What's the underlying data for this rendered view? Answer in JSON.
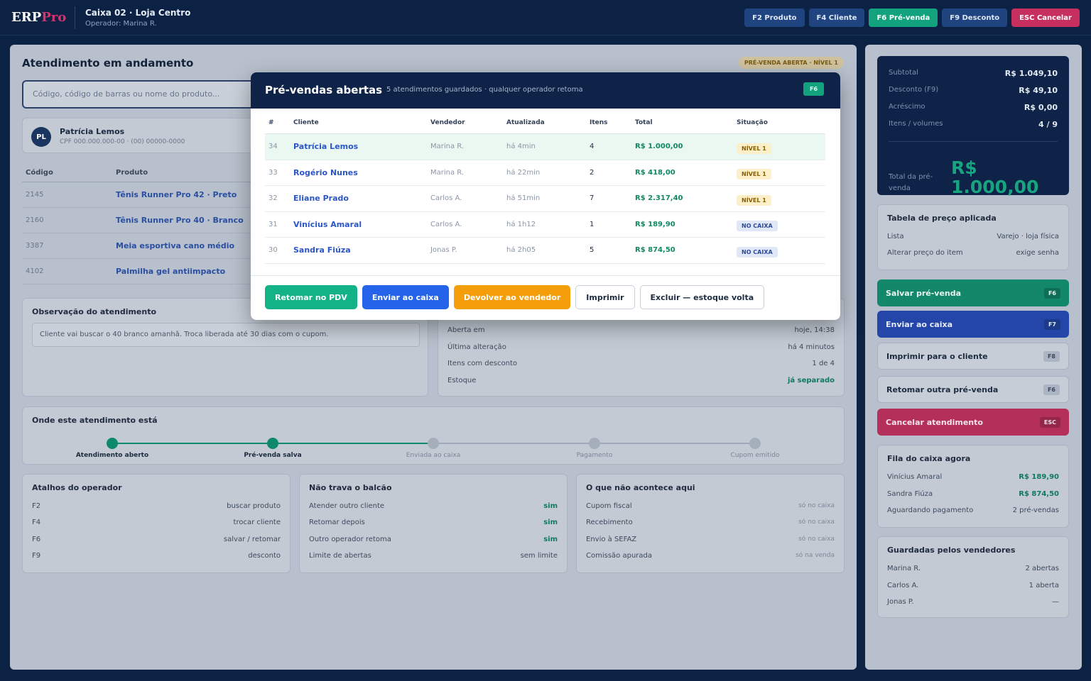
{
  "topbar": {
    "logo_main": "ERP",
    "logo_accent": "Pro",
    "terminal": "Caixa 02 · Loja Centro",
    "operator": "Operador: Marina R.",
    "shortcuts": [
      "F2 Produto",
      "F4 Cliente",
      "F6 Pré-venda",
      "F9 Desconto",
      "ESC Cancelar"
    ]
  },
  "main": {
    "title": "Atendimento em andamento",
    "status_badge": "PRÉ-VENDA ABERTA · NÍVEL 1",
    "search_placeholder": "Código, código de barras ou nome do produto...",
    "client": {
      "initials": "PL",
      "name": "Patrícia Lemos",
      "details": "CPF 000.000.000-00 · (00) 00000-0000"
    },
    "products": {
      "headers": [
        "Código",
        "Produto"
      ],
      "rows": [
        {
          "code": "2145",
          "name": "Tênis Runner Pro 42 · Preto"
        },
        {
          "code": "2160",
          "name": "Tênis Runner Pro 40 · Branco"
        },
        {
          "code": "3387",
          "name": "Meia esportiva cano médio"
        },
        {
          "code": "4102",
          "name": "Palmilha gel antiimpacto"
        }
      ]
    },
    "observation": {
      "title": "Observação do atendimento",
      "text": "Cliente vai buscar o 40 branco amanhã. Troca liberada até 30 dias com o cupom."
    },
    "info_rows": [
      {
        "label": "Aberta em",
        "value": "hoje, 14:38"
      },
      {
        "label": "Última alteração",
        "value": "há 4 minutos"
      },
      {
        "label": "Itens com desconto",
        "value": "1 de 4"
      },
      {
        "label": "Estoque",
        "value": "já separado"
      }
    ],
    "tracker": {
      "title": "Onde este atendimento está",
      "steps": [
        "Atendimento aberto",
        "Pré-venda salva",
        "Enviada ao caixa",
        "Pagamento",
        "Cupom emitido"
      ]
    },
    "shortcuts_card": {
      "title": "Atalhos do operador",
      "rows": [
        {
          "k": "F2",
          "v": "buscar produto"
        },
        {
          "k": "F4",
          "v": "trocar cliente"
        },
        {
          "k": "F6",
          "v": "salvar / retomar"
        },
        {
          "k": "F9",
          "v": "desconto"
        }
      ]
    },
    "counter_card": {
      "title": "Não trava o balcão",
      "rows": [
        {
          "k": "Atender outro cliente",
          "v": "sim"
        },
        {
          "k": "Retomar depois",
          "v": "sim"
        },
        {
          "k": "Outro operador retoma",
          "v": "sim"
        },
        {
          "k": "Limite de abertas",
          "v": "sem limite"
        }
      ]
    },
    "not_here_card": {
      "title": "O que não acontece aqui",
      "rows": [
        {
          "k": "Cupom fiscal",
          "v": "só no caixa"
        },
        {
          "k": "Recebimento",
          "v": "só no caixa"
        },
        {
          "k": "Envio à SEFAZ",
          "v": "só no caixa"
        },
        {
          "k": "Comissão apurada",
          "v": "só na venda"
        }
      ]
    }
  },
  "sidebar": {
    "totals": [
      {
        "label": "Subtotal",
        "value": "R$ 1.049,10"
      },
      {
        "label": "Desconto (F9)",
        "value": "R$ 49,10"
      },
      {
        "label": "Acréscimo",
        "value": "R$ 0,00"
      },
      {
        "label": "Itens / volumes",
        "value": "4 / 9"
      }
    ],
    "total_label": "Total da pré-venda",
    "total_value_1": "R$",
    "total_value_2": "1.000,00",
    "price_table": {
      "title": "Tabela de preço aplicada",
      "rows": [
        {
          "k": "Lista",
          "v": "Varejo · loja física"
        },
        {
          "k": "Alterar preço do item",
          "v": "exige senha"
        }
      ]
    },
    "actions": [
      {
        "label": "Salvar pré-venda",
        "key": "F6"
      },
      {
        "label": "Enviar ao caixa",
        "key": "F7"
      },
      {
        "label": "Imprimir para o cliente",
        "key": "F8"
      },
      {
        "label": "Retomar outra pré-venda",
        "key": "F6"
      },
      {
        "label": "Cancelar atendimento",
        "key": "ESC"
      }
    ],
    "queue": {
      "title": "Fila do caixa agora",
      "rows": [
        {
          "k": "Vinícius Amaral",
          "v": "R$ 189,90"
        },
        {
          "k": "Sandra Fiúza",
          "v": "R$ 874,50"
        },
        {
          "k": "Aguardando pagamento",
          "v": "2 pré-vendas"
        }
      ]
    },
    "stored": {
      "title": "Guardadas pelos vendedores",
      "rows": [
        {
          "k": "Marina R.",
          "v": "2 abertas"
        },
        {
          "k": "Carlos A.",
          "v": "1 aberta"
        },
        {
          "k": "Jonas P.",
          "v": "—"
        }
      ]
    }
  },
  "modal": {
    "title": "Pré-vendas abertas",
    "subtitle": "5 atendimentos guardados · qualquer operador retoma",
    "key": "F6",
    "headers": [
      "#",
      "Cliente",
      "Vendedor",
      "Atualizada",
      "Itens",
      "Total",
      "Situação"
    ],
    "rows": [
      {
        "id": "34",
        "client": "Patrícia Lemos",
        "seller": "Marina R.",
        "updated": "há 4min",
        "items": "4",
        "total": "R$ 1.000,00",
        "status": "NÍVEL 1"
      },
      {
        "id": "33",
        "client": "Rogério Nunes",
        "seller": "Marina R.",
        "updated": "há 22min",
        "items": "2",
        "total": "R$ 418,00",
        "status": "NÍVEL 1"
      },
      {
        "id": "32",
        "client": "Eliane Prado",
        "seller": "Carlos A.",
        "updated": "há 51min",
        "items": "7",
        "total": "R$ 2.317,40",
        "status": "NÍVEL 1"
      },
      {
        "id": "31",
        "client": "Vinícius Amaral",
        "seller": "Carlos A.",
        "updated": "há 1h12",
        "items": "1",
        "total": "R$ 189,90",
        "status": "NO CAIXA"
      },
      {
        "id": "30",
        "client": "Sandra Fiúza",
        "seller": "Jonas P.",
        "updated": "há 2h05",
        "items": "5",
        "total": "R$ 874,50",
        "status": "NO CAIXA"
      }
    ],
    "buttons": [
      "Retomar no PDV",
      "Enviar ao caixa",
      "Devolver ao vendedor",
      "Imprimir",
      "Excluir — estoque volta"
    ]
  },
  "colors": {
    "navy": "#0c2245",
    "accent_green": "#12a37e",
    "accent_red": "#c72f5e",
    "link_blue": "#2a56c6"
  }
}
